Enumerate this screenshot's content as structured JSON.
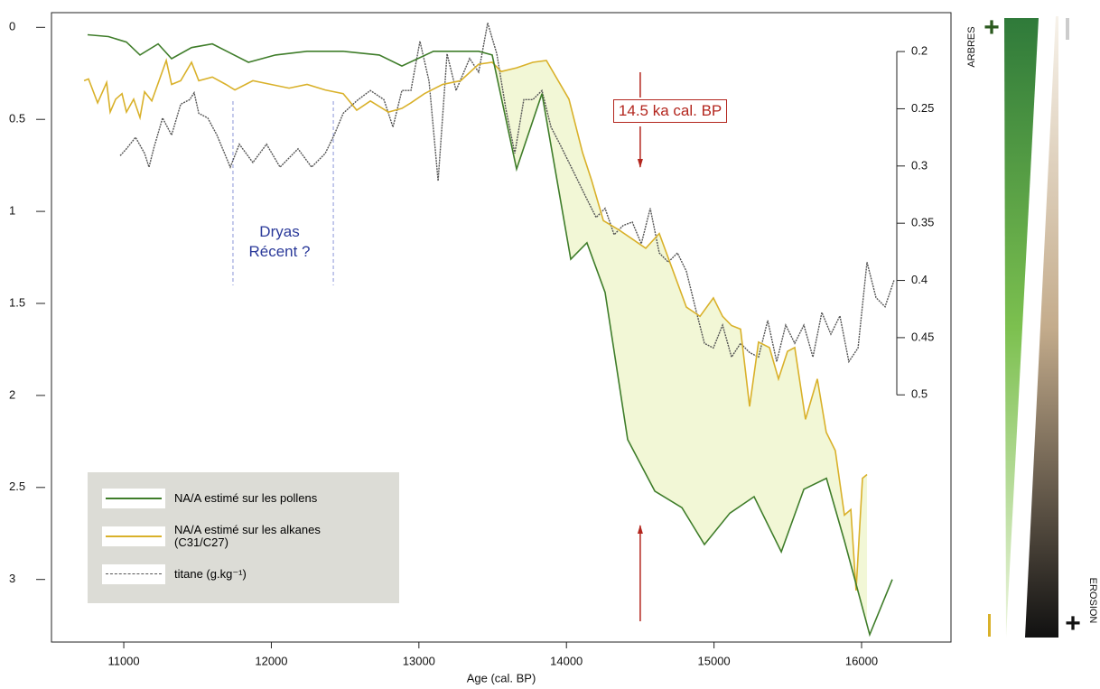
{
  "chart_data": {
    "type": "line",
    "xlabel": "Age (cal. BP)",
    "xlim": [
      10510,
      16606
    ],
    "xticks": [
      11000,
      12000,
      13000,
      14000,
      15000,
      16000
    ],
    "ylim": [
      3.34,
      -0.08
    ],
    "yticks": [
      0,
      0.5,
      1,
      1.5,
      2,
      2.5,
      3
    ],
    "y2lim": [
      0.716,
      0.166
    ],
    "y2ticks": [
      0.2,
      0.25,
      0.3,
      0.35,
      0.4,
      0.45,
      0.5
    ],
    "fill_color": "#f2f7d6",
    "series": [
      {
        "name": "NA/A estimé sur les pollens",
        "color": "#3f7d2a",
        "x": [
          10755,
          10896,
          11018,
          11110,
          11233,
          11324,
          11459,
          11600,
          11845,
          12028,
          12242,
          12487,
          12732,
          12885,
          13099,
          13405,
          13497,
          13662,
          13834,
          14029,
          14139,
          14262,
          14415,
          14599,
          14783,
          14935,
          15107,
          15272,
          15456,
          15609,
          15762,
          15884,
          16055,
          16208
        ],
        "values": [
          0.04,
          0.05,
          0.08,
          0.15,
          0.09,
          0.17,
          0.11,
          0.09,
          0.19,
          0.15,
          0.13,
          0.13,
          0.15,
          0.21,
          0.13,
          0.13,
          0.15,
          0.77,
          0.36,
          1.26,
          1.17,
          1.44,
          2.24,
          2.52,
          2.61,
          2.81,
          2.64,
          2.55,
          2.85,
          2.51,
          2.45,
          2.79,
          3.3,
          3.0
        ]
      },
      {
        "name": "NA/A estimé sur les alkanes\n(C31/C27)",
        "color": "#d9b12a",
        "x": [
          10731,
          10761,
          10823,
          10884,
          10908,
          10945,
          10988,
          11018,
          11067,
          11110,
          11141,
          11190,
          11239,
          11288,
          11324,
          11386,
          11459,
          11508,
          11600,
          11692,
          11753,
          11875,
          11998,
          12120,
          12242,
          12365,
          12487,
          12579,
          12671,
          12793,
          12885,
          12946,
          13038,
          13160,
          13283,
          13405,
          13497,
          13558,
          13662,
          13772,
          13864,
          14017,
          14109,
          14170,
          14250,
          14354,
          14446,
          14537,
          14629,
          14721,
          14813,
          14905,
          14996,
          15058,
          15119,
          15180,
          15241,
          15302,
          15376,
          15437,
          15498,
          15547,
          15620,
          15700,
          15761,
          15822,
          15884,
          15927,
          15963,
          16006,
          16037
        ],
        "values": [
          0.29,
          0.28,
          0.41,
          0.3,
          0.46,
          0.39,
          0.36,
          0.46,
          0.39,
          0.49,
          0.35,
          0.4,
          0.29,
          0.18,
          0.31,
          0.29,
          0.19,
          0.29,
          0.27,
          0.31,
          0.34,
          0.29,
          0.31,
          0.33,
          0.31,
          0.34,
          0.36,
          0.45,
          0.4,
          0.46,
          0.44,
          0.41,
          0.36,
          0.31,
          0.29,
          0.2,
          0.19,
          0.24,
          0.22,
          0.19,
          0.18,
          0.39,
          0.68,
          0.83,
          1.05,
          1.1,
          1.15,
          1.2,
          1.12,
          1.32,
          1.52,
          1.57,
          1.47,
          1.57,
          1.62,
          1.64,
          2.06,
          1.71,
          1.74,
          1.91,
          1.76,
          1.74,
          2.13,
          1.91,
          2.2,
          2.3,
          2.65,
          2.62,
          3.06,
          2.45,
          2.43
        ]
      },
      {
        "name": "titane (g.kg⁻¹)",
        "color": "#555555",
        "axis": "y2",
        "dashed": true,
        "x": [
          10976,
          11018,
          11080,
          11141,
          11171,
          11202,
          11263,
          11324,
          11386,
          11447,
          11477,
          11508,
          11569,
          11631,
          11722,
          11783,
          11875,
          11967,
          12059,
          12181,
          12273,
          12365,
          12426,
          12487,
          12579,
          12671,
          12763,
          12824,
          12885,
          12946,
          13007,
          13069,
          13130,
          13191,
          13252,
          13344,
          13405,
          13466,
          13528,
          13589,
          13650,
          13711,
          13772,
          13834,
          13895,
          13956,
          14017,
          14078,
          14139,
          14201,
          14262,
          14323,
          14384,
          14446,
          14507,
          14568,
          14629,
          14690,
          14752,
          14813,
          14874,
          14935,
          14996,
          15058,
          15119,
          15180,
          15241,
          15302,
          15364,
          15425,
          15486,
          15547,
          15609,
          15670,
          15731,
          15792,
          15853,
          15914,
          15976,
          16037,
          16098,
          16159,
          16220
        ],
        "values": [
          0.291,
          0.285,
          0.275,
          0.289,
          0.301,
          0.285,
          0.258,
          0.273,
          0.246,
          0.242,
          0.236,
          0.254,
          0.258,
          0.273,
          0.301,
          0.281,
          0.297,
          0.281,
          0.301,
          0.285,
          0.301,
          0.289,
          0.273,
          0.254,
          0.243,
          0.234,
          0.242,
          0.266,
          0.234,
          0.234,
          0.191,
          0.226,
          0.313,
          0.202,
          0.234,
          0.206,
          0.218,
          0.175,
          0.202,
          0.25,
          0.289,
          0.242,
          0.242,
          0.234,
          0.266,
          0.281,
          0.297,
          0.313,
          0.329,
          0.345,
          0.337,
          0.36,
          0.352,
          0.349,
          0.368,
          0.337,
          0.376,
          0.384,
          0.376,
          0.392,
          0.424,
          0.455,
          0.459,
          0.439,
          0.467,
          0.455,
          0.463,
          0.467,
          0.435,
          0.471,
          0.439,
          0.455,
          0.439,
          0.467,
          0.428,
          0.447,
          0.431,
          0.471,
          0.459,
          0.384,
          0.415,
          0.423,
          0.4
        ]
      }
    ],
    "annotations": [
      {
        "text": "Dryas\nRécent ?",
        "color": "#2b3a9a",
        "x_bounds": [
          11740,
          12420
        ]
      },
      {
        "text": "14.5 ka cal. BP",
        "color": "#b3261e",
        "x": 14500
      }
    ],
    "side_scale": {
      "trees": "ARBRES",
      "erosion": "EROSION",
      "plus": "+"
    }
  }
}
